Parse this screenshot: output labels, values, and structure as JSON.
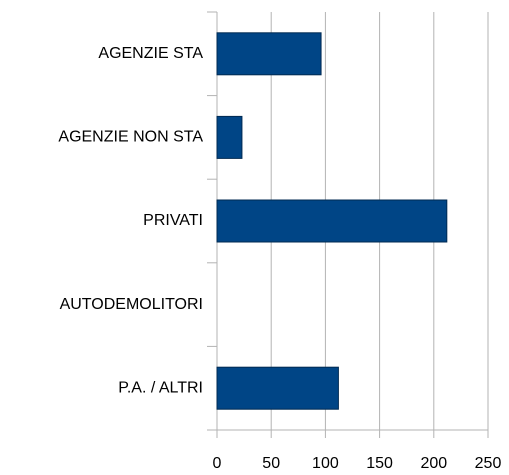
{
  "chart_data": {
    "type": "bar",
    "orientation": "horizontal",
    "categories": [
      "AGENZIE STA",
      "AGENZIE NON STA",
      "PRIVATI",
      "AUTODEMOLITORI",
      "P.A. / ALTRI"
    ],
    "values": [
      96,
      23,
      212,
      0,
      112
    ],
    "color": "#004586",
    "xlim": [
      0,
      250
    ],
    "xticks": [
      0,
      50,
      100,
      150,
      200,
      250
    ],
    "grid": true
  }
}
